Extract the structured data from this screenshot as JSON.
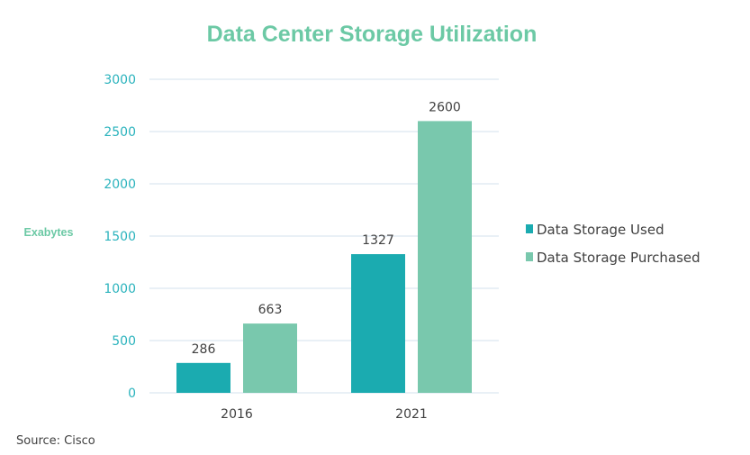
{
  "chart_data": {
    "type": "bar",
    "title": "Data Center Storage Utilization",
    "ylabel": "Exabytes",
    "xlabel": "",
    "categories": [
      "2016",
      "2021"
    ],
    "series": [
      {
        "name": "Data Storage Used",
        "values": [
          286,
          1327
        ],
        "color": "#1BABB0"
      },
      {
        "name": "Data Storage Purchased",
        "values": [
          663,
          2600
        ],
        "color": "#79C8AD"
      }
    ],
    "ylim": [
      0,
      3000
    ],
    "yticks": [
      0,
      500,
      1000,
      1500,
      2000,
      2500,
      3000
    ],
    "grid": true,
    "legend": "right",
    "source": "Source: Cisco",
    "colors": {
      "title": "#6CC9A5",
      "ytick": "#2BB3BD",
      "ylabel": "#6CC9A5",
      "grid": "#DCE6F0",
      "text": "#404040"
    }
  }
}
